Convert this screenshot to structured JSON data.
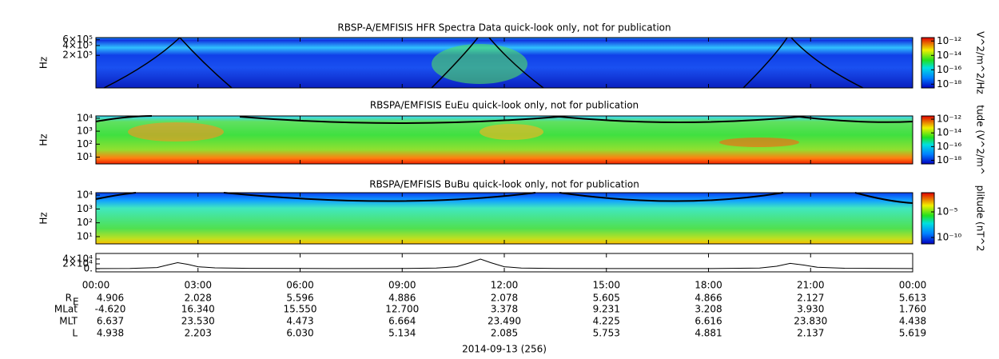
{
  "chart_data": [
    {
      "type": "spectrogram",
      "title": "RBSP-A/EMFISIS  HFR Spectra Data quick-look only, not for publication",
      "ylabel": "Hz",
      "log": true,
      "ylim": [
        20000,
        700000
      ],
      "yticks": [
        {
          "value": 600000,
          "label": "6×10⁵"
        },
        {
          "value": 400000,
          "label": "4×10⁵"
        },
        {
          "value": 200000,
          "label": "2×10⁵"
        }
      ],
      "colorbar_label": "V^2/m^2/Hz",
      "clim": [
        3e-19,
        3e-12
      ],
      "colorbar_ticks": [
        {
          "value": 1e-12,
          "label": "10⁻¹²"
        },
        {
          "value": 1e-14,
          "label": "10⁻¹⁴"
        },
        {
          "value": 1e-16,
          "label": "10⁻¹⁶"
        },
        {
          "value": 1e-18,
          "label": "10⁻¹⁸"
        }
      ]
    },
    {
      "type": "spectrogram",
      "title": "RBSPA/EMFISIS  EuEu quick-look only, not for publication",
      "ylabel": "Hz",
      "log": true,
      "ylim": [
        3,
        15000
      ],
      "yticks": [
        {
          "value": 10000,
          "label": "10⁴"
        },
        {
          "value": 1000,
          "label": "10³"
        },
        {
          "value": 100,
          "label": "10²"
        },
        {
          "value": 10,
          "label": "10¹"
        }
      ],
      "colorbar_label": "tude (V^2/m^",
      "clim": [
        3e-19,
        3e-12
      ],
      "colorbar_ticks": [
        {
          "value": 1e-12,
          "label": "10⁻¹²"
        },
        {
          "value": 1e-14,
          "label": "10⁻¹⁴"
        },
        {
          "value": 1e-16,
          "label": "10⁻¹⁶"
        },
        {
          "value": 1e-18,
          "label": "10⁻¹⁸"
        }
      ]
    },
    {
      "type": "spectrogram",
      "title": "RBSPA/EMFISIS  BuBu quick-look only, not for publication",
      "ylabel": "Hz",
      "log": true,
      "ylim": [
        3,
        15000
      ],
      "yticks": [
        {
          "value": 10000,
          "label": "10⁴"
        },
        {
          "value": 1000,
          "label": "10³"
        },
        {
          "value": 100,
          "label": "10²"
        },
        {
          "value": 10,
          "label": "10¹"
        }
      ],
      "colorbar_label": "plitude (nT^2",
      "clim": [
        5.6e-12,
        0.056
      ],
      "colorbar_ticks": [
        {
          "value": 1e-05,
          "label": "10⁻⁵"
        },
        {
          "value": 1e-10,
          "label": "10⁻¹⁰"
        }
      ]
    },
    {
      "type": "line",
      "color": "#000000",
      "ylim": [
        -13000,
        63000
      ],
      "yticks": [
        {
          "value": 40000,
          "label": "4×10⁴"
        },
        {
          "value": 20000,
          "label": "2×10⁴"
        },
        {
          "value": 0,
          "label": "0."
        }
      ],
      "xlim": [
        0,
        24
      ],
      "xticks": [
        {
          "value": 0,
          "label": "00:00"
        },
        {
          "value": 3,
          "label": "03:00"
        },
        {
          "value": 6,
          "label": "06:00"
        },
        {
          "value": 9,
          "label": "09:00"
        },
        {
          "value": 12,
          "label": "12:00"
        },
        {
          "value": 15,
          "label": "15:00"
        },
        {
          "value": 18,
          "label": "18:00"
        },
        {
          "value": 21,
          "label": "21:00"
        },
        {
          "value": 24,
          "label": "00:00"
        }
      ],
      "x": [
        0,
        1,
        1.8,
        2.1,
        2.4,
        2.7,
        3.0,
        3.5,
        4.5,
        7,
        9,
        10,
        10.6,
        11.0,
        11.3,
        11.6,
        12.0,
        12.5,
        13.5,
        16,
        18,
        19.5,
        20.0,
        20.4,
        20.8,
        21.2,
        22,
        24
      ],
      "values": [
        500,
        1200,
        5000,
        15000,
        25000,
        18000,
        8000,
        3500,
        1500,
        500,
        800,
        2500,
        8000,
        25000,
        40000,
        25000,
        8000,
        3000,
        1200,
        400,
        700,
        2500,
        10000,
        22000,
        15000,
        6000,
        2000,
        600
      ]
    }
  ],
  "ephemeris": {
    "rows": [
      {
        "label": "R",
        "label_sub": "E",
        "values": [
          "4.906",
          "2.028",
          "5.596",
          "4.886",
          "2.078",
          "5.605",
          "4.866",
          "2.127",
          "5.613"
        ]
      },
      {
        "label": "MLat",
        "values": [
          "-4.620",
          "16.340",
          "15.550",
          "12.700",
          "3.378",
          "9.231",
          "3.208",
          "3.930",
          "1.760"
        ]
      },
      {
        "label": "MLT",
        "values": [
          "6.637",
          "23.530",
          "4.473",
          "6.664",
          "23.490",
          "4.225",
          "6.616",
          "23.830",
          "4.438"
        ]
      },
      {
        "label": "L",
        "values": [
          "4.938",
          "2.203",
          "6.030",
          "5.134",
          "2.085",
          "5.753",
          "4.881",
          "2.137",
          "5.619"
        ]
      }
    ],
    "date": "2014-09-13 (256)"
  }
}
